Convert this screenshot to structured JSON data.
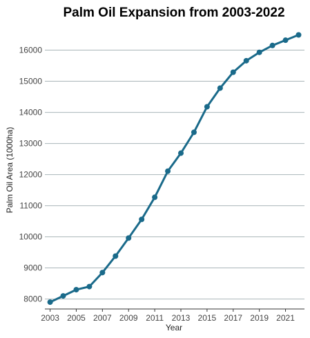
{
  "chart_data": {
    "type": "line",
    "title": "Palm Oil Expansion from 2003-2022",
    "xlabel": "Year",
    "ylabel": "Palm Oil Area (1000ha)",
    "x": [
      2003,
      2004,
      2005,
      2006,
      2007,
      2008,
      2009,
      2010,
      2011,
      2012,
      2013,
      2014,
      2015,
      2016,
      2017,
      2018,
      2019,
      2020,
      2021,
      2022
    ],
    "series": [
      {
        "name": "Palm Oil Area",
        "color": "#1a6a8a",
        "values": [
          7900,
          8100,
          8300,
          8400,
          8850,
          9380,
          9960,
          10560,
          11270,
          12110,
          12690,
          13360,
          14180,
          14780,
          15290,
          15660,
          15930,
          16150,
          16320,
          16490
        ]
      }
    ],
    "xticks": [
      "2003",
      "2005",
      "2007",
      "2009",
      "2011",
      "2013",
      "2015",
      "2017",
      "2019",
      "2021"
    ],
    "yticks": [
      "8000",
      "9000",
      "10000",
      "11000",
      "12000",
      "13000",
      "14000",
      "15000",
      "16000"
    ],
    "xlim": [
      2002.6,
      2022.45
    ],
    "ylim": [
      7680,
      16790
    ],
    "grid": "horizontal",
    "legend": "none"
  }
}
